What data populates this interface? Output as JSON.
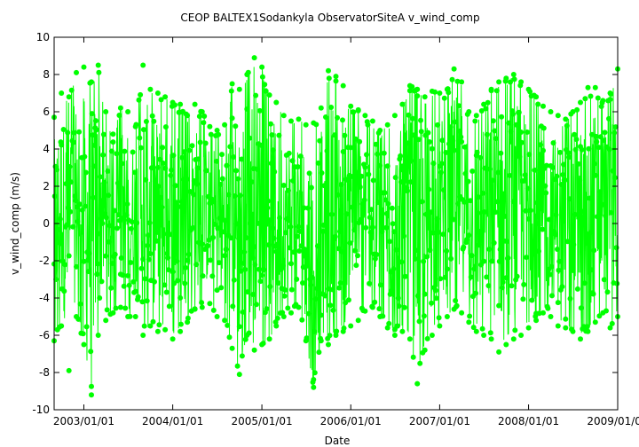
{
  "chart_data": {
    "type": "line",
    "title": "CEOP BALTEX1Sodankyla ObservatorSiteA  v_wind_comp",
    "xlabel": "Date",
    "ylabel": "v_wind_comp (m/s)",
    "xlim": [
      "2002/09/01",
      "2009/01/01"
    ],
    "ylim": [
      -10,
      10
    ],
    "x_ticks": [
      "2003/01/01",
      "2004/01/01",
      "2005/01/01",
      "2006/01/01",
      "2007/01/01",
      "2008/01/01",
      "2009/01/01"
    ],
    "y_ticks": [
      -10,
      -8,
      -6,
      -4,
      -2,
      0,
      2,
      4,
      6,
      8,
      10
    ],
    "grid": false,
    "legend": "none",
    "series": [
      {
        "color": "#00ff00",
        "marker": "circle",
        "x": [
          "2002/09/01",
          "2002/10/01",
          "2002/11/01",
          "2002/12/01",
          "2003/01/01",
          "2003/02/01",
          "2003/03/01",
          "2003/04/01",
          "2003/05/01",
          "2003/06/01",
          "2003/07/01",
          "2003/08/01",
          "2003/09/01",
          "2003/10/01",
          "2003/11/01",
          "2003/12/01",
          "2004/01/01",
          "2004/02/01",
          "2004/03/01",
          "2004/04/01",
          "2004/05/01",
          "2004/06/01",
          "2004/07/01",
          "2004/08/01",
          "2004/09/01",
          "2004/10/01",
          "2004/11/01",
          "2004/12/01",
          "2005/01/01",
          "2005/02/01",
          "2005/03/01",
          "2005/04/01",
          "2005/05/01",
          "2005/06/01",
          "2005/07/01",
          "2005/08/01",
          "2005/09/01",
          "2005/10/01",
          "2005/11/01",
          "2005/12/01",
          "2006/01/01",
          "2006/02/01",
          "2006/03/01",
          "2006/04/01",
          "2006/05/01",
          "2006/06/01",
          "2006/07/01",
          "2006/08/01",
          "2006/09/01",
          "2006/10/01",
          "2006/11/01",
          "2006/12/01",
          "2007/01/01",
          "2007/02/01",
          "2007/03/01",
          "2007/04/01",
          "2007/05/01",
          "2007/06/01",
          "2007/07/01",
          "2007/08/01",
          "2007/09/01",
          "2007/10/01",
          "2007/11/01",
          "2007/12/01",
          "2008/01/01",
          "2008/02/01",
          "2008/03/01",
          "2008/04/01",
          "2008/05/01",
          "2008/06/01",
          "2008/07/01",
          "2008/08/01",
          "2008/09/01",
          "2008/10/01",
          "2008/11/01",
          "2008/12/01",
          "2009/01/01"
        ],
        "max": [
          5.7,
          7.0,
          6.8,
          8.1,
          8.4,
          7.6,
          8.5,
          6.0,
          4.8,
          6.2,
          6.0,
          5.2,
          8.5,
          7.2,
          7.0,
          6.8,
          6.5,
          6.4,
          5.8,
          6.4,
          6.0,
          5.2,
          5.0,
          5.3,
          7.5,
          7.2,
          8.0,
          8.9,
          8.4,
          6.9,
          6.5,
          5.8,
          5.5,
          5.6,
          5.3,
          5.4,
          6.2,
          8.2,
          7.9,
          7.4,
          6.3,
          6.1,
          5.8,
          5.5,
          5.0,
          5.3,
          5.8,
          6.4,
          7.4,
          7.2,
          6.8,
          7.1,
          7.0,
          7.2,
          8.3,
          7.6,
          6.0,
          5.8,
          6.4,
          7.2,
          7.6,
          7.8,
          8.0,
          7.6,
          7.2,
          6.8,
          6.3,
          6.0,
          5.8,
          5.6,
          6.0,
          6.5,
          7.3,
          7.3,
          6.6,
          7.0,
          8.3
        ],
        "min": [
          -6.3,
          -5.5,
          -7.9,
          -5.0,
          -6.5,
          -9.2,
          -6.0,
          -5.2,
          -4.8,
          -4.5,
          -5.0,
          -5.0,
          -6.0,
          -5.5,
          -5.8,
          -5.7,
          -6.2,
          -5.8,
          -5.3,
          -4.6,
          -4.5,
          -4.3,
          -5.0,
          -5.2,
          -6.7,
          -8.1,
          -6.0,
          -6.8,
          -6.5,
          -6.2,
          -5.5,
          -5.0,
          -4.8,
          -4.5,
          -6.3,
          -8.8,
          -6.3,
          -6.5,
          -6.0,
          -5.8,
          -5.5,
          -5.2,
          -4.7,
          -4.5,
          -5.0,
          -5.6,
          -6.0,
          -5.8,
          -6.2,
          -8.6,
          -6.8,
          -6.0,
          -5.5,
          -5.0,
          -4.6,
          -4.8,
          -5.3,
          -5.8,
          -6.0,
          -6.2,
          -6.9,
          -6.5,
          -6.2,
          -6.0,
          -5.6,
          -5.2,
          -4.8,
          -5.0,
          -5.5,
          -5.6,
          -5.8,
          -6.2,
          -5.8,
          -5.3,
          -4.8,
          -5.6,
          -5.0
        ]
      }
    ]
  }
}
